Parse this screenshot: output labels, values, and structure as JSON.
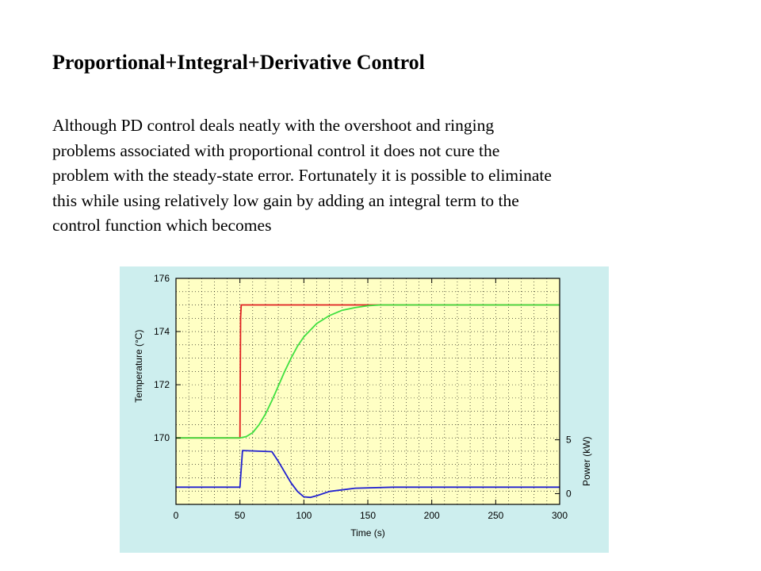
{
  "slide": {
    "title": "Proportional+Integral+Derivative Control",
    "body_lines": [
      "Although PD control deals neatly with the overshoot and ringing",
      "problems associated with proportional control it does not cure the",
      "problem with the steady-state error. Fortunately it is possible to eliminate",
      "this while using relatively low gain by adding an integral term to the",
      "control function which becomes"
    ]
  },
  "colors": {
    "figure_bg": "#cdeeee",
    "plot_bg": "#ffffc4",
    "setpoint": "#e02020",
    "temperature": "#40e040",
    "power": "#2020d0"
  },
  "chart_data": {
    "type": "line",
    "title": "",
    "xlabel": "Time (s)",
    "ylabel_left": "Temperature (°C)",
    "ylabel_right": "Power (kW)",
    "xlim": [
      0,
      300
    ],
    "ylim_left": [
      167.5,
      176
    ],
    "ylim_right": [
      -1,
      20
    ],
    "x_ticks": [
      "0",
      "50",
      "100",
      "150",
      "200",
      "250",
      "300"
    ],
    "y_left_ticks": [
      "176",
      "174",
      "172",
      "170"
    ],
    "y_right_ticks": [
      "5",
      "0"
    ],
    "grid": true,
    "legend": "none",
    "series": [
      {
        "axis": "left",
        "color": "#e02020",
        "x": [
          0,
          50,
          50.5,
          51,
          300
        ],
        "y": [
          170,
          170,
          174.5,
          175,
          175
        ]
      },
      {
        "axis": "left",
        "color": "#40e040",
        "x": [
          0,
          50,
          55,
          60,
          65,
          70,
          75,
          80,
          85,
          90,
          95,
          100,
          110,
          120,
          130,
          140,
          150,
          160,
          180,
          200,
          250,
          300
        ],
        "y": [
          170,
          170,
          170.05,
          170.2,
          170.5,
          170.9,
          171.4,
          171.95,
          172.5,
          173.0,
          173.45,
          173.8,
          174.3,
          174.6,
          174.8,
          174.9,
          174.97,
          175,
          175,
          175,
          175,
          175
        ]
      },
      {
        "axis": "right",
        "color": "#2020d0",
        "x": [
          0,
          50,
          52,
          75,
          80,
          85,
          90,
          95,
          100,
          105,
          110,
          120,
          140,
          170,
          200,
          250,
          300
        ],
        "y": [
          0.6,
          0.6,
          4.0,
          3.9,
          3.0,
          2.0,
          1.0,
          0.2,
          -0.3,
          -0.35,
          -0.2,
          0.2,
          0.5,
          0.6,
          0.6,
          0.6,
          0.6
        ]
      }
    ]
  }
}
